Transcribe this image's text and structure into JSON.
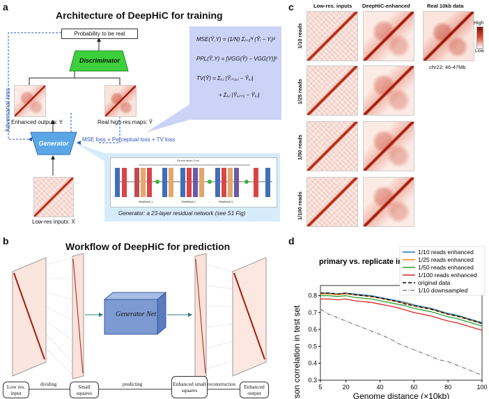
{
  "panel_a": {
    "letter": "a",
    "title": "Architecture of DeepHiC for training",
    "prob_label": "Probability to be real",
    "discriminator_label": "Discriminator",
    "generator_label": "Generator",
    "adversarial_loss": "Adversarial loss",
    "enhanced_label": "Enhanced outputs: Y",
    "real_label": "Real high-res maps: Ŷ",
    "lowres_label": "Low-res inputs: X",
    "loss_label": "MSE loss + Perceptual loss + TV loss",
    "generator_caption": "Generator: a 23-layer residual network (see S1 Fig)",
    "formula_mse": "MSE(Ŷ,Y) = (1/N) Σᵢ₌₁ᴺ (Ŷᵢ − Yᵢ)²",
    "formula_ppl": "PPL(Ŷ,Y) = [VGG(Ŷ) − VGG(Y)]²",
    "formula_tv1": "TV(Ŷ)  = Σᵢ,ⱼ |Ŷᵢ₊₁,ⱼ − Ŷᵢ,ⱼ|",
    "formula_tv2": "+ Σᵢ,ⱼ |Ŷᵢ,ⱼ₊₁ − Ŷᵢ,ⱼ|",
    "net_top": "Elementwise Sum",
    "net_blocks": [
      "ResBlock 1",
      "ResBlock 2",
      "...",
      "ResBlock 5"
    ]
  },
  "panel_b": {
    "letter": "b",
    "title": "Workflow of DeepHiC for prediction",
    "generator_net": "Generator Net",
    "steps": [
      "Low res. input",
      "Small squares",
      "Enhanced small squares",
      "Enhanced output"
    ],
    "arrows": [
      "dividing",
      "predicting",
      "reconstruction"
    ]
  },
  "panel_c": {
    "letter": "c",
    "col_headers": [
      "Low-res. inputs",
      "DeepHiC-enhanced",
      "Real 10kb data"
    ],
    "row_labels": [
      "1/10 reads",
      "1/25 reads",
      "1/50 reads",
      "1/100 reads"
    ],
    "colorbar_high": "High",
    "colorbar_low": "Low",
    "region": "chr22: 46-47Mb"
  },
  "panel_d": {
    "letter": "d"
  },
  "chart_data": {
    "type": "line",
    "title": "primary vs. replicate in",
    "xlabel": "Genome distance (×10kb)",
    "ylabel": "Pearson correlation in test set",
    "xlim": [
      5,
      100
    ],
    "ylim": [
      0.3,
      0.86
    ],
    "xticks": [
      5,
      20,
      40,
      60,
      80,
      100
    ],
    "yticks": [
      0.3,
      0.4,
      0.5,
      0.6,
      0.7,
      0.8
    ],
    "x": [
      5,
      10,
      15,
      20,
      25,
      30,
      35,
      40,
      45,
      50,
      55,
      60,
      65,
      70,
      75,
      80,
      85,
      90,
      95,
      100
    ],
    "series": [
      {
        "name": "1/10 reads enhanced",
        "color": "#1f77b4",
        "dash": "",
        "values": [
          0.815,
          0.815,
          0.81,
          0.815,
          0.81,
          0.805,
          0.8,
          0.79,
          0.78,
          0.77,
          0.76,
          0.745,
          0.735,
          0.725,
          0.71,
          0.695,
          0.685,
          0.67,
          0.655,
          0.64
        ]
      },
      {
        "name": "1/25 reads enhanced",
        "color": "#ff7f0e",
        "dash": "",
        "values": [
          0.81,
          0.81,
          0.805,
          0.81,
          0.805,
          0.8,
          0.795,
          0.785,
          0.775,
          0.765,
          0.755,
          0.74,
          0.73,
          0.72,
          0.705,
          0.69,
          0.68,
          0.665,
          0.65,
          0.635
        ]
      },
      {
        "name": "1/50 reads enhanced",
        "color": "#2ca02c",
        "dash": "",
        "values": [
          0.8,
          0.8,
          0.795,
          0.8,
          0.79,
          0.785,
          0.78,
          0.77,
          0.76,
          0.75,
          0.74,
          0.725,
          0.715,
          0.705,
          0.69,
          0.675,
          0.665,
          0.65,
          0.635,
          0.62
        ]
      },
      {
        "name": "1/100 reads enhanced",
        "color": "#d62728",
        "dash": "",
        "values": [
          0.78,
          0.78,
          0.775,
          0.78,
          0.77,
          0.765,
          0.76,
          0.75,
          0.74,
          0.73,
          0.715,
          0.7,
          0.69,
          0.68,
          0.665,
          0.65,
          0.64,
          0.625,
          0.61,
          0.595
        ]
      },
      {
        "name": "original data",
        "color": "#000000",
        "dash": "5,3",
        "values": [
          0.815,
          0.815,
          0.81,
          0.815,
          0.805,
          0.8,
          0.795,
          0.785,
          0.775,
          0.765,
          0.75,
          0.74,
          0.73,
          0.72,
          0.705,
          0.69,
          0.68,
          0.665,
          0.65,
          0.635
        ]
      },
      {
        "name": "1/10 downsampled",
        "color": "#888888",
        "dash": "6,2,1,2",
        "values": [
          0.72,
          0.69,
          0.67,
          0.65,
          0.63,
          0.61,
          0.59,
          0.57,
          0.55,
          0.52,
          0.5,
          0.48,
          0.46,
          0.44,
          0.42,
          0.41,
          0.39,
          0.37,
          0.35,
          0.33
        ]
      }
    ]
  }
}
